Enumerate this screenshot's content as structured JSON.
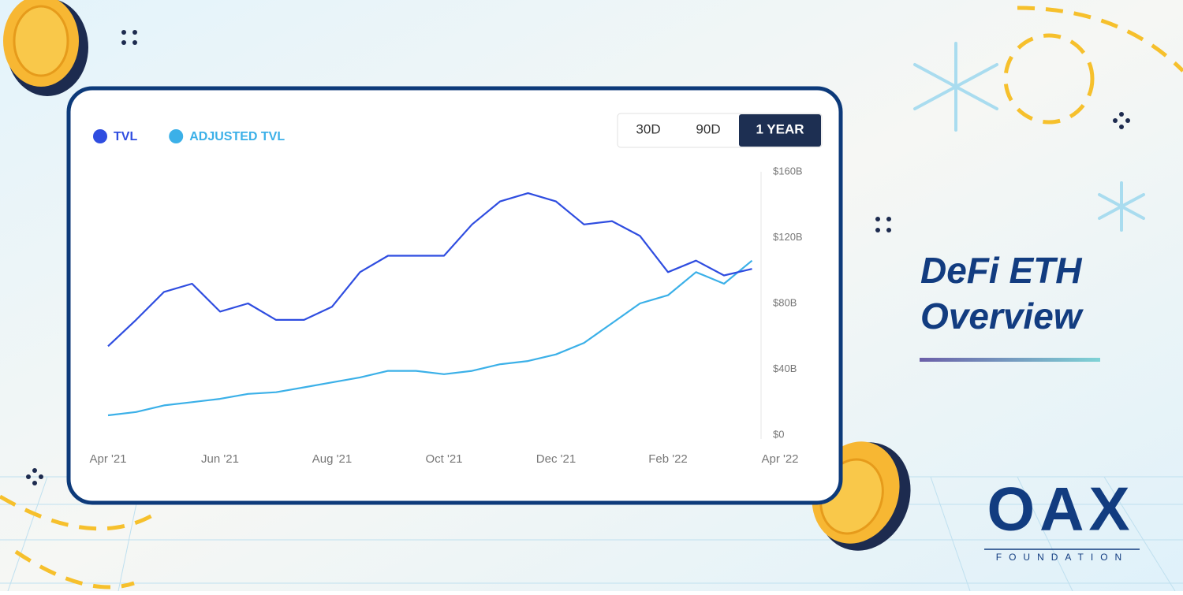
{
  "page": {
    "headline": "DeFi ETH Overview",
    "brand": "OAX",
    "brand_sub": "FOUNDATION",
    "range_buttons": [
      "30D",
      "90D",
      "1 YEAR"
    ]
  },
  "chart_data": {
    "type": "line",
    "categories": [
      "Apr '21",
      null,
      null,
      null,
      "Jun '21",
      null,
      null,
      null,
      "Aug '21",
      null,
      null,
      null,
      "Oct '21",
      null,
      null,
      null,
      "Dec '21",
      null,
      null,
      null,
      "Feb '22",
      null,
      null,
      null,
      "Apr '22"
    ],
    "series": [
      {
        "name": "TVL",
        "color": "#2f4de0",
        "values": [
          54,
          70,
          87,
          92,
          75,
          80,
          70,
          70,
          78,
          99,
          109,
          109,
          109,
          128,
          142,
          147,
          142,
          128,
          130,
          121,
          99,
          106,
          97,
          101,
          null
        ]
      },
      {
        "name": "ADJUSTED TVL",
        "color": "#3bb0e8",
        "values": [
          12,
          14,
          18,
          20,
          22,
          25,
          26,
          29,
          32,
          35,
          39,
          39,
          37,
          39,
          43,
          45,
          49,
          56,
          68,
          80,
          85,
          99,
          92,
          106,
          null
        ]
      }
    ],
    "ylim": [
      0,
      160
    ],
    "yticks": [
      {
        "value": 0,
        "label": "$0"
      },
      {
        "value": 40,
        "label": "$40B"
      },
      {
        "value": 80,
        "label": "$80B"
      },
      {
        "value": 120,
        "label": "$120B"
      },
      {
        "value": 160,
        "label": "$160B"
      }
    ],
    "legend": "top-left"
  }
}
